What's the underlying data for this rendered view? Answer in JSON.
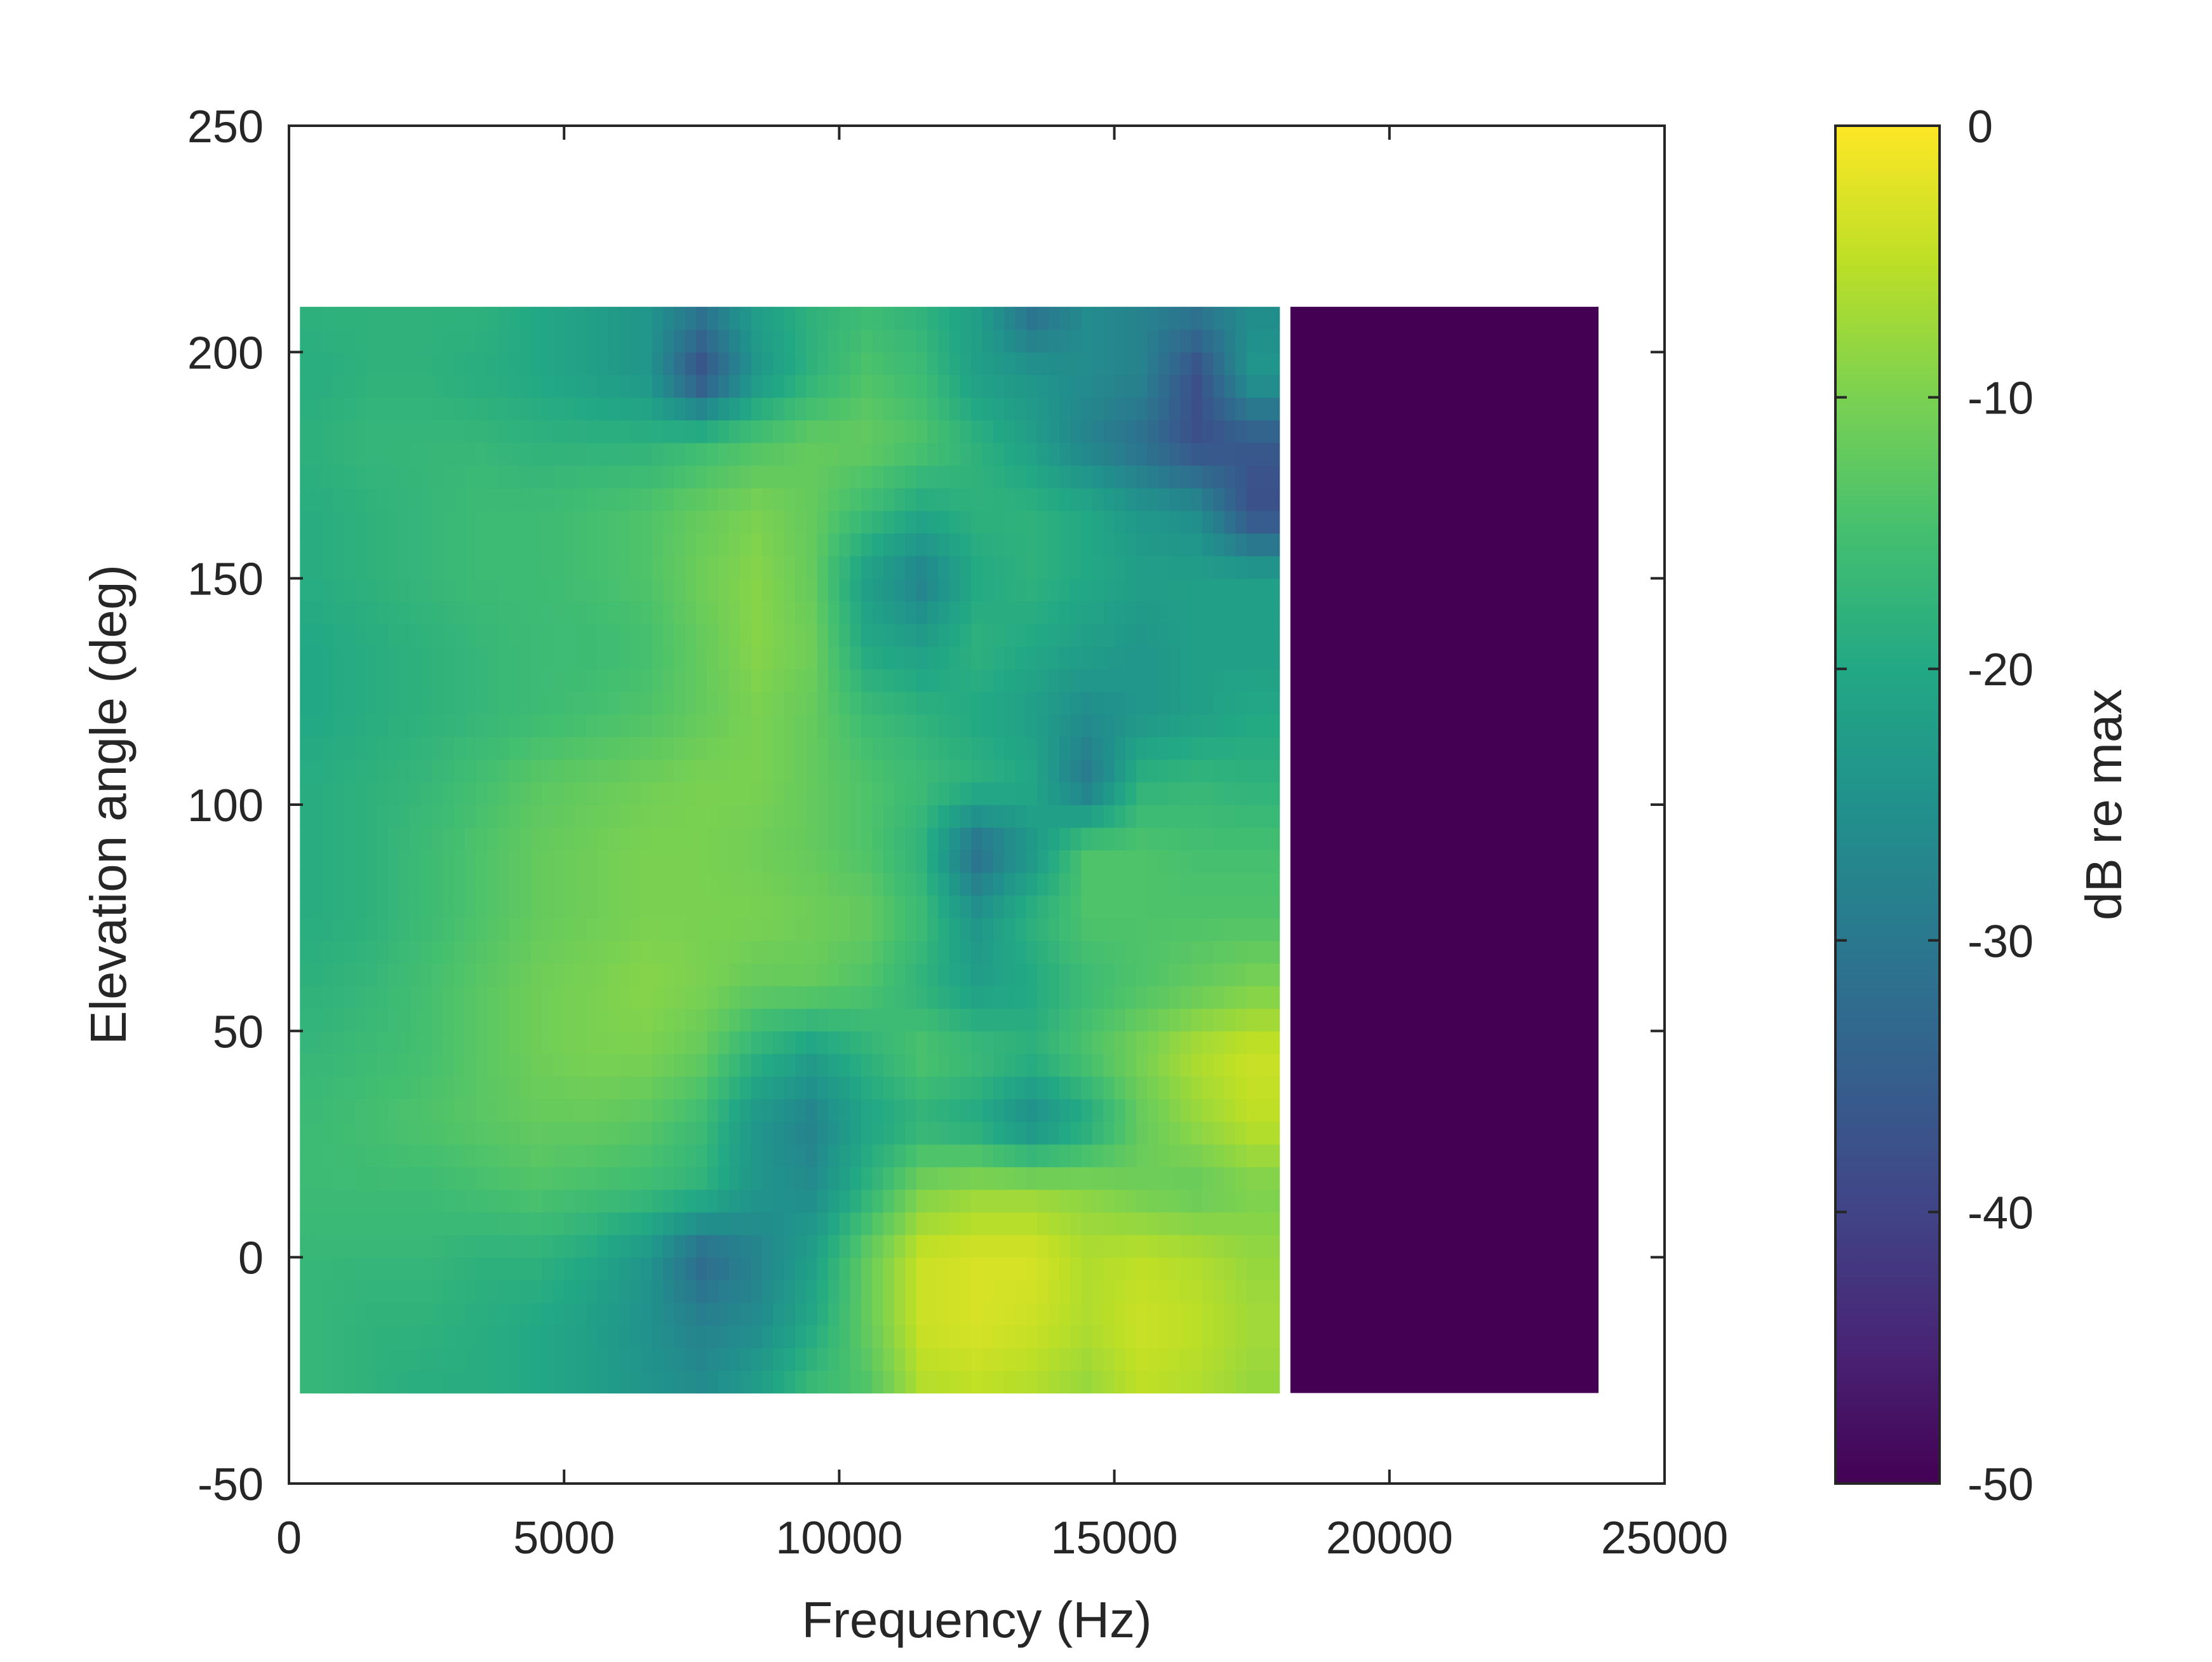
{
  "chart_data": {
    "type": "heatmap",
    "title": "",
    "xlabel": "Frequency (Hz)",
    "ylabel": "Elevation angle (deg)",
    "xlim": [
      0,
      25000
    ],
    "ylim": [
      -50,
      250
    ],
    "xticks": [
      0,
      5000,
      10000,
      15000,
      20000,
      25000
    ],
    "xtick_labels": [
      "0",
      "5000",
      "10000",
      "15000",
      "20000",
      "25000"
    ],
    "yticks": [
      -50,
      0,
      50,
      100,
      150,
      200,
      250
    ],
    "ytick_labels": [
      "-50",
      "0",
      "50",
      "100",
      "150",
      "200",
      "250"
    ],
    "colormap": "viridis",
    "colorbar": {
      "label": "dB re max",
      "range": [
        -50,
        0
      ],
      "ticks": [
        0,
        -10,
        -20,
        -30,
        -40,
        -50
      ],
      "tick_labels": [
        "0",
        "-10",
        "-20",
        "-30",
        "-40",
        "-50"
      ]
    },
    "data_extent": {
      "x": [
        200,
        23800
      ],
      "y": [
        -30,
        210
      ]
    },
    "flat_region": {
      "x": [
        18200,
        23800
      ],
      "value_db": -50
    },
    "freq_bins_hz": [
      500,
      1500,
      2500,
      3500,
      4500,
      5500,
      6500,
      7500,
      8500,
      9500,
      10500,
      11500,
      12500,
      13500,
      14500,
      15500,
      16500,
      17500
    ],
    "elev_bins_deg": [
      -30,
      -15,
      0,
      15,
      30,
      45,
      60,
      75,
      90,
      105,
      120,
      135,
      150,
      165,
      180,
      195,
      210
    ],
    "values_db": [
      [
        -17,
        -18,
        -19,
        -19,
        -20,
        -22,
        -24,
        -26,
        -22,
        -16,
        -14,
        -6,
        -5,
        -6,
        -8,
        -5,
        -6,
        -8
      ],
      [
        -17,
        -18,
        -18,
        -19,
        -20,
        -22,
        -25,
        -28,
        -26,
        -20,
        -12,
        -4,
        -3,
        -4,
        -6,
        -4,
        -5,
        -7
      ],
      [
        -17,
        -17,
        -17,
        -18,
        -18,
        -20,
        -24,
        -33,
        -28,
        -22,
        -12,
        -4,
        -3,
        -3,
        -6,
        -5,
        -6,
        -8
      ],
      [
        -16,
        -16,
        -16,
        -15,
        -14,
        -15,
        -16,
        -18,
        -24,
        -26,
        -18,
        -10,
        -8,
        -8,
        -9,
        -11,
        -12,
        -10
      ],
      [
        -16,
        -15,
        -14,
        -13,
        -12,
        -12,
        -13,
        -16,
        -24,
        -28,
        -21,
        -18,
        -20,
        -26,
        -20,
        -12,
        -8,
        -5
      ],
      [
        -17,
        -16,
        -15,
        -13,
        -11,
        -10,
        -10,
        -12,
        -18,
        -22,
        -18,
        -14,
        -16,
        -18,
        -14,
        -10,
        -6,
        -4
      ],
      [
        -18,
        -17,
        -15,
        -13,
        -11,
        -10,
        -9,
        -10,
        -12,
        -12,
        -14,
        -18,
        -22,
        -20,
        -16,
        -14,
        -12,
        -10
      ],
      [
        -19,
        -18,
        -16,
        -14,
        -12,
        -11,
        -10,
        -10,
        -10,
        -11,
        -12,
        -16,
        -24,
        -18,
        -14,
        -14,
        -14,
        -14
      ],
      [
        -19,
        -18,
        -16,
        -14,
        -12,
        -11,
        -10,
        -10,
        -11,
        -12,
        -14,
        -18,
        -32,
        -24,
        -14,
        -14,
        -15,
        -15
      ],
      [
        -19,
        -18,
        -17,
        -15,
        -13,
        -12,
        -11,
        -10,
        -10,
        -12,
        -14,
        -16,
        -18,
        -20,
        -30,
        -18,
        -17,
        -18
      ],
      [
        -20,
        -19,
        -18,
        -17,
        -16,
        -15,
        -14,
        -12,
        -10,
        -12,
        -16,
        -18,
        -20,
        -22,
        -26,
        -24,
        -22,
        -20
      ],
      [
        -20,
        -19,
        -18,
        -17,
        -16,
        -16,
        -15,
        -12,
        -9,
        -11,
        -20,
        -22,
        -18,
        -20,
        -22,
        -24,
        -22,
        -22
      ],
      [
        -19,
        -18,
        -17,
        -16,
        -16,
        -15,
        -14,
        -11,
        -9,
        -12,
        -22,
        -28,
        -20,
        -18,
        -20,
        -22,
        -22,
        -22
      ],
      [
        -19,
        -18,
        -17,
        -16,
        -16,
        -15,
        -14,
        -12,
        -10,
        -12,
        -16,
        -20,
        -18,
        -18,
        -20,
        -24,
        -26,
        -38
      ],
      [
        -18,
        -17,
        -17,
        -17,
        -18,
        -18,
        -18,
        -16,
        -14,
        -12,
        -12,
        -14,
        -18,
        -22,
        -28,
        -32,
        -38,
        -36
      ],
      [
        -19,
        -18,
        -18,
        -19,
        -20,
        -22,
        -24,
        -38,
        -24,
        -18,
        -14,
        -16,
        -22,
        -24,
        -26,
        -28,
        -38,
        -24
      ],
      [
        -18,
        -18,
        -18,
        -18,
        -20,
        -22,
        -24,
        -30,
        -22,
        -18,
        -16,
        -18,
        -22,
        -32,
        -26,
        -28,
        -30,
        -26
      ]
    ]
  }
}
